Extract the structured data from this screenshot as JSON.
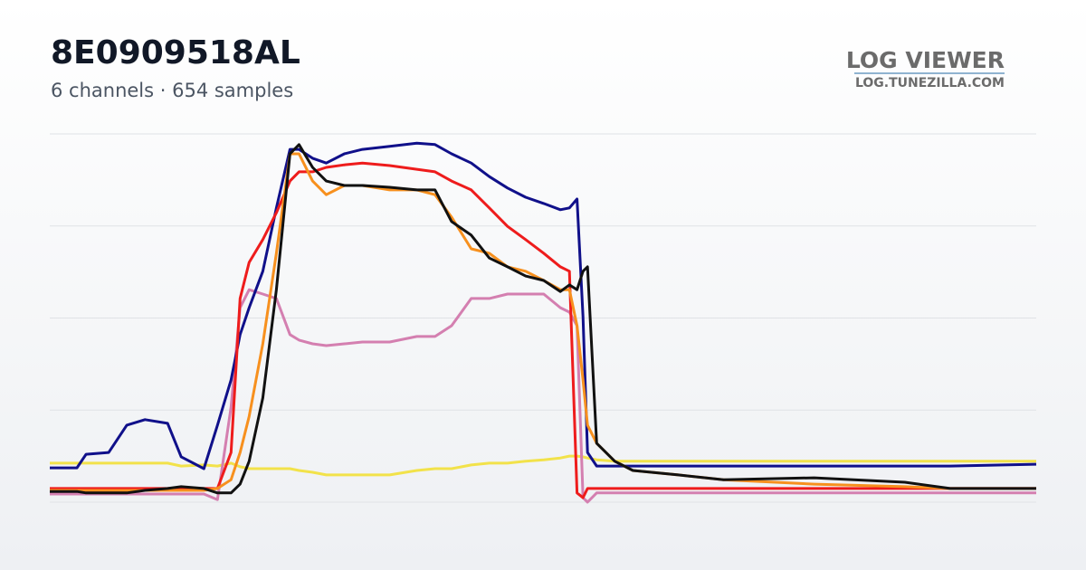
{
  "chart_data": {
    "type": "line",
    "title": "8E0909518AL",
    "subtitle": "6 channels · 654 samples",
    "x": [
      0,
      18,
      24,
      39,
      51,
      63,
      78,
      87,
      102,
      111,
      120,
      126,
      132,
      141,
      150,
      159,
      165,
      174,
      183,
      195,
      207,
      225,
      243,
      255,
      266,
      279,
      291,
      303,
      315,
      327,
      338,
      344,
      349,
      353,
      356,
      362,
      374,
      386,
      416,
      446,
      506,
      566,
      596,
      653
    ],
    "xlim": [
      0,
      653
    ],
    "ylim": [
      0,
      100
    ],
    "yticks": [
      0,
      25,
      50,
      75,
      100
    ],
    "grid": true,
    "tick_labels": false,
    "series": [
      {
        "color": "#f2e24a",
        "values": [
          10.6,
          10.6,
          10.6,
          10.6,
          10.6,
          10.6,
          10.6,
          9.8,
          10.1,
          9.8,
          10.6,
          9.6,
          9.1,
          9.1,
          9.1,
          9.1,
          8.6,
          8.1,
          7.4,
          7.4,
          7.4,
          7.4,
          8.6,
          9.1,
          9.1,
          10.1,
          10.6,
          10.6,
          11.1,
          11.5,
          12.0,
          12.5,
          12.5,
          12.3,
          12.0,
          11.5,
          11.1,
          11.1,
          11.1,
          11.1,
          11.1,
          11.1,
          11.1,
          11.1
        ]
      },
      {
        "color": "#d47fb0",
        "values": [
          2.2,
          2.2,
          2.2,
          2.2,
          2.2,
          2.2,
          2.2,
          2.2,
          2.2,
          0.7,
          25.8,
          52.8,
          57.7,
          56.5,
          55.3,
          45.5,
          44.0,
          43.0,
          42.5,
          43.0,
          43.5,
          43.5,
          45.0,
          45.0,
          47.9,
          55.3,
          55.3,
          56.5,
          56.5,
          56.5,
          52.8,
          51.6,
          47.9,
          1.2,
          0,
          2.5,
          2.5,
          2.5,
          2.5,
          2.5,
          2.5,
          2.5,
          2.5,
          2.5
        ]
      },
      {
        "color": "#10108a",
        "values": [
          9.3,
          9.3,
          13.0,
          13.5,
          20.9,
          22.4,
          21.4,
          12.3,
          9.1,
          20.9,
          33.2,
          45.5,
          52.8,
          62.7,
          79.9,
          95.8,
          95.8,
          93.4,
          92.1,
          94.6,
          95.8,
          96.6,
          97.5,
          97.1,
          94.6,
          92.1,
          88.4,
          85.3,
          82.8,
          81.1,
          79.4,
          79.9,
          82.3,
          50.4,
          13.5,
          9.8,
          9.8,
          9.8,
          9.8,
          9.8,
          9.8,
          9.8,
          9.8,
          10.3
        ]
      },
      {
        "color": "#ee1c1c",
        "values": [
          3.7,
          3.7,
          3.7,
          3.7,
          3.7,
          3.7,
          3.7,
          3.7,
          3.7,
          3.7,
          13.5,
          55.3,
          65.1,
          71.3,
          78.6,
          87.2,
          89.7,
          89.7,
          90.9,
          91.6,
          92.1,
          91.4,
          90.4,
          89.7,
          87.2,
          84.8,
          79.9,
          74.9,
          71.3,
          67.6,
          63.9,
          62.7,
          2.5,
          1.2,
          3.7,
          3.7,
          3.7,
          3.7,
          3.7,
          3.7,
          3.7,
          3.7,
          3.7,
          3.7
        ]
      },
      {
        "color": "#f7901e",
        "values": [
          3.2,
          3.2,
          3.2,
          3.2,
          3.2,
          3.2,
          3.2,
          3.2,
          3.2,
          3.7,
          6.1,
          13.5,
          23.3,
          43.0,
          67.6,
          94.6,
          94.6,
          87.2,
          83.5,
          86.0,
          86.0,
          84.8,
          84.8,
          83.5,
          77.4,
          68.8,
          67.6,
          63.9,
          62.7,
          60.2,
          57.7,
          57.7,
          47.9,
          33.2,
          20.9,
          16.0,
          11.1,
          8.6,
          7.4,
          6.1,
          4.9,
          4.2,
          3.7,
          3.7
        ]
      },
      {
        "color": "#111111",
        "values": [
          2.9,
          2.9,
          2.5,
          2.5,
          2.5,
          3.2,
          3.7,
          4.2,
          3.7,
          2.5,
          2.5,
          4.9,
          11.1,
          28.3,
          57.7,
          94.6,
          97.1,
          90.9,
          87.2,
          86.0,
          86.0,
          85.5,
          84.8,
          84.8,
          76.2,
          72.5,
          66.3,
          63.9,
          61.4,
          60.2,
          57.2,
          59.0,
          57.7,
          62.7,
          63.9,
          16.0,
          11.1,
          8.6,
          7.4,
          6.1,
          6.6,
          5.4,
          3.7,
          3.7
        ]
      }
    ]
  },
  "brand": {
    "name": "LOG VIEWER",
    "url": "LOG.TUNEZILLA.COM"
  }
}
